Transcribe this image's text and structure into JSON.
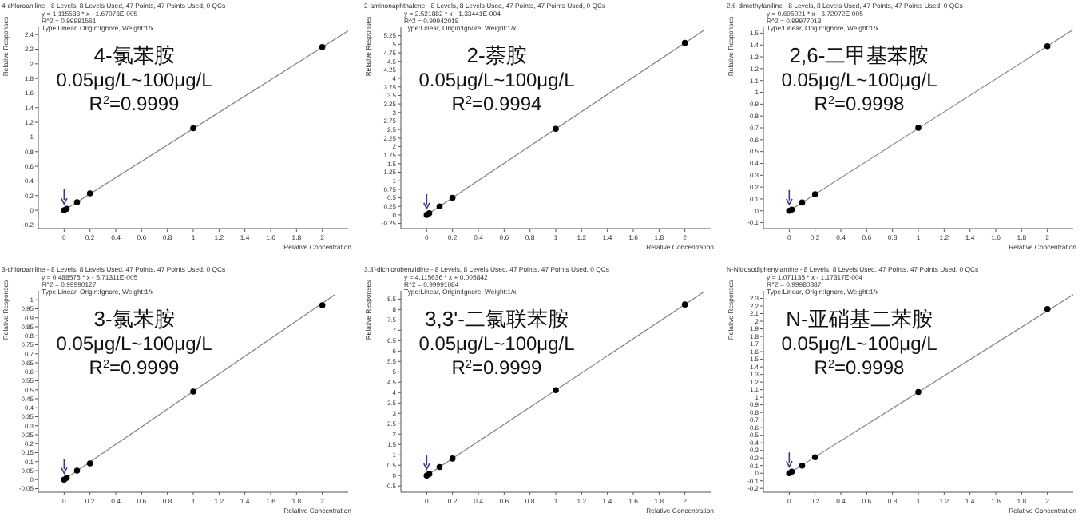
{
  "chart_data": [
    {
      "type": "scatter",
      "title": "4-chloroaniline - 8 Levels, 8 Levels Used, 47 Points, 47 Points Used, 0 QCs",
      "annotations": [
        "y = 1.115583 * x - 1.67073E-005",
        "R^2 = 0.99991561",
        "Type:Linear, Origin:Ignore, Weight:1/x",
        "4-氯苯胺",
        "0.05μg/L~100μg/L",
        "R$^{2}$=0.9999"
      ],
      "xlabel": "Relative Concentration",
      "ylabel": "Relative Responses",
      "xlim": [
        -0.2,
        2.2
      ],
      "xticks": [
        0,
        0.2,
        0.4,
        0.6,
        0.8,
        1,
        1.2,
        1.4,
        1.6,
        1.8,
        2
      ],
      "ylim": [
        -0.25,
        2.5
      ],
      "yticks": [
        -0.2,
        0,
        0.2,
        0.4,
        0.6,
        0.8,
        1,
        1.2,
        1.4,
        1.6,
        1.8,
        2,
        2.2,
        2.4
      ],
      "series": [
        {
          "marker": "circle",
          "color": "#000000",
          "x": [
            0,
            0.02,
            0.1,
            0.2,
            1,
            2
          ],
          "values": [
            0,
            0.02,
            0.11,
            0.23,
            1.12,
            2.23
          ]
        },
        {
          "type": "line",
          "color": "#808080",
          "x": [
            0,
            2.2
          ],
          "values": [
            0,
            2.45
          ]
        }
      ]
    },
    {
      "type": "scatter",
      "title": "2-aminonaphthalene - 8 Levels, 8 Levels Used, 47 Points, 47 Points Used, 0 QCs",
      "annotations": [
        "y = 2.521882 * x - 1.33441E-004",
        "R^2 = 0.99942018",
        "Type:Linear, Origin:Ignore, Weight:1/x",
        "2-萘胺",
        "0.05μg/L~100μg/L",
        "R$^{2}$=0.9994"
      ],
      "xlabel": "Relative Concentration",
      "ylabel": "Relative Responses",
      "xlim": [
        -0.2,
        2.2
      ],
      "xticks": [
        0,
        0.2,
        0.4,
        0.6,
        0.8,
        1,
        1.2,
        1.4,
        1.6,
        1.8,
        2
      ],
      "ylim": [
        -0.4,
        5.5
      ],
      "yticks": [
        -0.25,
        0,
        0.25,
        0.5,
        0.75,
        1,
        1.25,
        1.5,
        1.75,
        2,
        2.25,
        2.5,
        2.75,
        3,
        3.25,
        3.5,
        3.75,
        4,
        4.25,
        4.5,
        4.75,
        5,
        5.25
      ],
      "series": [
        {
          "marker": "circle",
          "color": "#000000",
          "x": [
            0,
            0.02,
            0.1,
            0.2,
            1,
            2
          ],
          "values": [
            0,
            0.05,
            0.25,
            0.5,
            2.52,
            5.04
          ]
        },
        {
          "type": "line",
          "color": "#808080",
          "x": [
            0,
            2.15
          ],
          "values": [
            0,
            5.42
          ]
        }
      ]
    },
    {
      "type": "scatter",
      "title": "2,6-dimethylaniline - 8 Levels, 8 Levels Used, 47 Points, 47 Points Used, 0 QCs",
      "annotations": [
        "y = 0.695021 * x - 3.72072E-005",
        "R^2 = 0.99977013",
        "Type:Linear, Origin:Ignore, Weight:1/x",
        "2,6-二甲基苯胺",
        "0.05μg/L~100μg/L",
        "R$^{2}$=0.9998"
      ],
      "xlabel": "Relative Concentration",
      "ylabel": "Relative Responses",
      "xlim": [
        -0.2,
        2.2
      ],
      "xticks": [
        0,
        0.2,
        0.4,
        0.6,
        0.8,
        1,
        1.2,
        1.4,
        1.6,
        1.8,
        2
      ],
      "ylim": [
        -0.15,
        1.55
      ],
      "yticks": [
        -0.1,
        0,
        0.1,
        0.2,
        0.3,
        0.4,
        0.5,
        0.6,
        0.7,
        0.8,
        0.9,
        1,
        1.1,
        1.2,
        1.3,
        1.4,
        1.5
      ],
      "series": [
        {
          "marker": "circle",
          "color": "#000000",
          "x": [
            0,
            0.02,
            0.1,
            0.2,
            1,
            2
          ],
          "values": [
            0,
            0.01,
            0.07,
            0.14,
            0.7,
            1.39
          ]
        },
        {
          "type": "line",
          "color": "#808080",
          "x": [
            0,
            2.2
          ],
          "values": [
            0,
            1.53
          ]
        }
      ]
    },
    {
      "type": "scatter",
      "title": "3-chloroaniline - 8 Levels, 8 Levels Used, 47 Points, 47 Points Used, 0 QCs",
      "annotations": [
        "y = 0.488575 * x - 5.71311E-005",
        "R^2 = 0.99990127",
        "Type:Linear, Origin:Ignore, Weight:1/x",
        "3-氯苯胺",
        "0.05μg/L~100μg/L",
        "R$^{2}$=0.9999"
      ],
      "xlabel": "Relative Concentration",
      "ylabel": "Relative Responses",
      "xlim": [
        -0.2,
        2.2
      ],
      "xticks": [
        0,
        0.2,
        0.4,
        0.6,
        0.8,
        1,
        1.2,
        1.4,
        1.6,
        1.8,
        2
      ],
      "ylim": [
        -0.07,
        1.05
      ],
      "yticks": [
        -0.05,
        0,
        0.05,
        0.1,
        0.15,
        0.2,
        0.25,
        0.3,
        0.35,
        0.4,
        0.45,
        0.5,
        0.55,
        0.6,
        0.65,
        0.7,
        0.75,
        0.8,
        0.85,
        0.9,
        0.95,
        1
      ],
      "series": [
        {
          "marker": "circle",
          "color": "#000000",
          "x": [
            0,
            0.02,
            0.1,
            0.2,
            1,
            2
          ],
          "values": [
            0,
            0.01,
            0.05,
            0.09,
            0.49,
            0.97
          ]
        },
        {
          "type": "line",
          "color": "#808080",
          "x": [
            0,
            2.1
          ],
          "values": [
            0,
            1.03
          ]
        }
      ]
    },
    {
      "type": "scatter",
      "title": "3,3'-dichlorobenzidine - 8 Levels, 8 Levels Used, 47 Points, 47 Points Used, 0 QCs",
      "annotations": [
        "y = 4.115636 * x + 0.005842",
        "R^2 = 0.99991084",
        "Type:Linear, Origin:Ignore, Weight:1/x",
        "3,3'-二氯联苯胺",
        "0.05μg/L~100μg/L",
        "R$^{2}$=0.9999"
      ],
      "xlabel": "Relative Concentration",
      "ylabel": "Relative Responses",
      "xlim": [
        -0.2,
        2.2
      ],
      "xticks": [
        0,
        0.2,
        0.4,
        0.6,
        0.8,
        1,
        1.2,
        1.4,
        1.6,
        1.8,
        2
      ],
      "ylim": [
        -0.8,
        8.9
      ],
      "yticks": [
        -0.5,
        0,
        0.5,
        1,
        1.5,
        2,
        2.5,
        3,
        3.5,
        4,
        4.5,
        5,
        5.5,
        6,
        6.5,
        7,
        7.5,
        8,
        8.5
      ],
      "series": [
        {
          "marker": "circle",
          "color": "#000000",
          "x": [
            0,
            0.02,
            0.1,
            0.2,
            1,
            2
          ],
          "values": [
            0,
            0.08,
            0.41,
            0.82,
            4.12,
            8.24
          ]
        },
        {
          "type": "line",
          "color": "#808080",
          "x": [
            0,
            2.15
          ],
          "values": [
            0,
            8.86
          ]
        }
      ]
    },
    {
      "type": "scatter",
      "title": "N-Nitrosodiphenylamine - 8 Levels, 8 Levels Used, 47 Points, 47 Points Used, 0 QCs",
      "annotations": [
        "y = 1.071135 * x - 1.17317E-004",
        "R^2 = 0.99980887",
        "Type:Linear, Origin:Ignore, Weight:1/x",
        "N-亚硝基二苯胺",
        "0.05μg/L~100μg/L",
        "R$^{2}$=0.9998"
      ],
      "xlabel": "Relative Concentration",
      "ylabel": "Relative Responses",
      "xlim": [
        -0.2,
        2.2
      ],
      "xticks": [
        0,
        0.2,
        0.4,
        0.6,
        0.8,
        1,
        1.2,
        1.4,
        1.6,
        1.8,
        2
      ],
      "ylim": [
        -0.25,
        2.4
      ],
      "yticks": [
        -0.2,
        -0.1,
        0,
        0.1,
        0.2,
        0.3,
        0.4,
        0.5,
        0.6,
        0.7,
        0.8,
        0.9,
        1,
        1.1,
        1.2,
        1.3,
        1.4,
        1.5,
        1.6,
        1.7,
        1.8,
        1.9,
        2,
        2.1,
        2.2,
        2.3
      ],
      "series": [
        {
          "marker": "circle",
          "color": "#000000",
          "x": [
            0,
            0.02,
            0.1,
            0.2,
            1,
            2
          ],
          "values": [
            0,
            0.02,
            0.1,
            0.21,
            1.07,
            2.16
          ]
        },
        {
          "type": "line",
          "color": "#808080",
          "x": [
            0,
            2.2
          ],
          "values": [
            0,
            2.35
          ]
        }
      ]
    }
  ]
}
